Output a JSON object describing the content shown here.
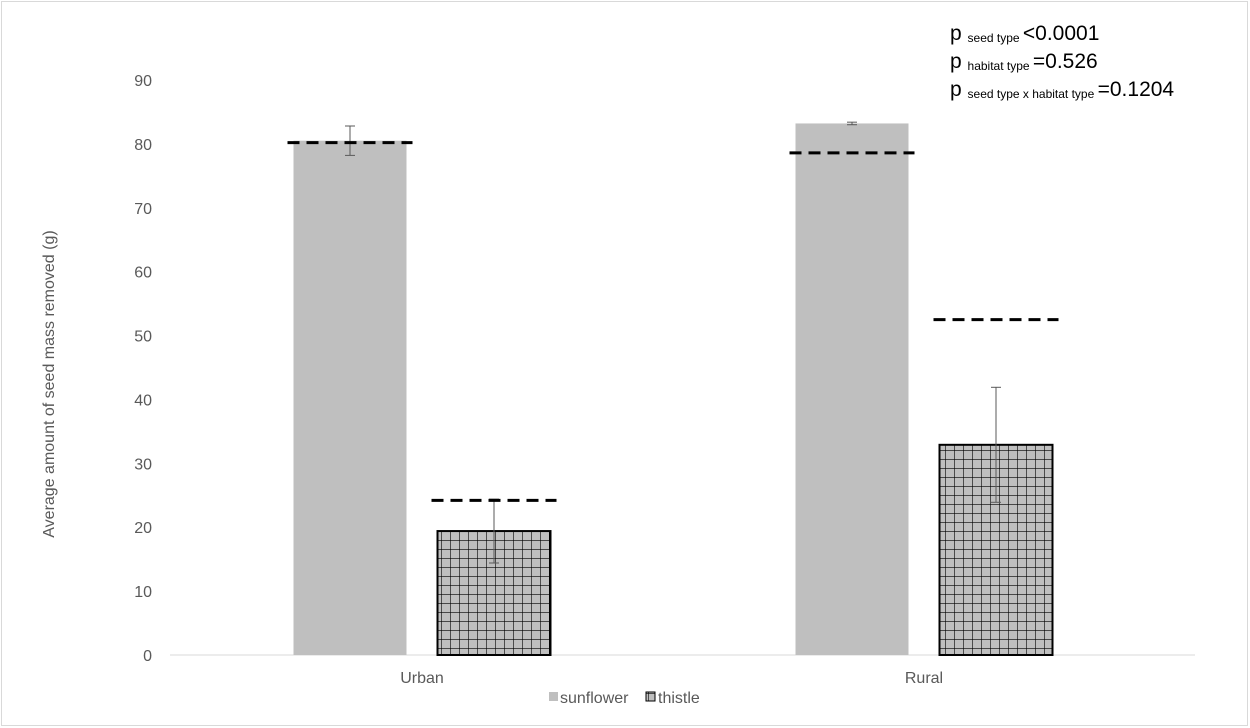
{
  "chart_data": {
    "type": "bar",
    "title": "",
    "xlabel": "",
    "ylabel": "Average  amount  of seed mass removed  (g)",
    "ylim": [
      0,
      90
    ],
    "yticks": [
      0,
      10,
      20,
      30,
      40,
      50,
      60,
      70,
      80,
      90
    ],
    "grid": false,
    "legend_position": "bottom",
    "categories": [
      "Urban",
      "Rural"
    ],
    "series": [
      {
        "name": "sunflower",
        "pattern": "solid",
        "color": "#bfbfbf",
        "values": [
          80.5,
          83.2
        ],
        "error": [
          2.3,
          0.2
        ],
        "reference_dashed": [
          80.2,
          78.6
        ]
      },
      {
        "name": "thistle",
        "pattern": "grid-hatch",
        "color": "#bfbfbf",
        "values": [
          19.4,
          32.9
        ],
        "error": [
          5.0,
          9.0
        ],
        "reference_dashed": [
          24.2,
          52.5
        ]
      }
    ],
    "annotations": [
      {
        "prefix": "p",
        "subscript": "seed type",
        "suffix": "<0.0001"
      },
      {
        "prefix": "p",
        "subscript": "habitat type",
        "suffix": "=0.526"
      },
      {
        "prefix": "p",
        "subscript": "seed type x habitat type",
        "suffix": "=0.1204"
      }
    ]
  },
  "colors": {
    "bar_fill": "#bfbfbf",
    "hatch_line": "#000000",
    "dash_line": "#000000",
    "axis_line": "#d9d9d9",
    "text": "#595959"
  }
}
